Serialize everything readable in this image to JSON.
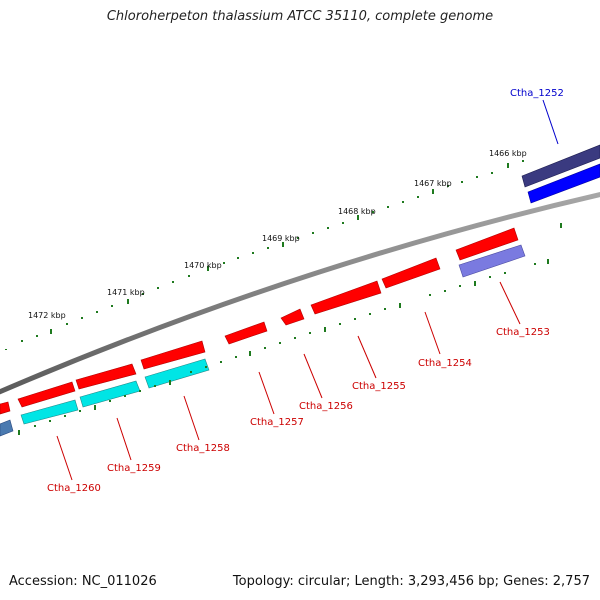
{
  "title": "Chloroherpeton thalassium ATCC 35110, complete genome",
  "footer": {
    "accession": "Accession: NC_011026",
    "topology": "Topology: circular; Length: 3,293,456 bp; Genes: 2,757"
  },
  "colors": {
    "forward_gene": "#0000ff",
    "forward_gene_dark": "#3a3a80",
    "reverse_gene": "#ff0000",
    "reverse_cds": "#00e5e5",
    "reverse_cds_alt": "#7a7ae0",
    "tick": "#1e7a1e",
    "backbone": "#808080",
    "label_forward": "#0000cc",
    "label_reverse": "#cc0000"
  },
  "kbp_labels": [
    "1466 kbp",
    "1467 kbp",
    "1468 kbp",
    "1469 kbp",
    "1470 kbp",
    "1471 kbp",
    "1472 kbp"
  ],
  "gene_labels": [
    {
      "text": "Ctha_1252",
      "strand": "forward"
    },
    {
      "text": "Ctha_1253",
      "strand": "reverse"
    },
    {
      "text": "Ctha_1254",
      "strand": "reverse"
    },
    {
      "text": "Ctha_1255",
      "strand": "reverse"
    },
    {
      "text": "Ctha_1256",
      "strand": "reverse"
    },
    {
      "text": "Ctha_1257",
      "strand": "reverse"
    },
    {
      "text": "Ctha_1258",
      "strand": "reverse"
    },
    {
      "text": "Ctha_1259",
      "strand": "reverse"
    },
    {
      "text": "Ctha_1260",
      "strand": "reverse"
    }
  ]
}
